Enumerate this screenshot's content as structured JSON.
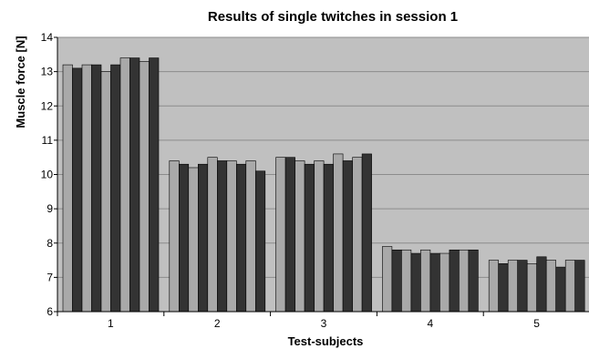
{
  "chart_data": {
    "type": "bar",
    "title": "Results of single twitches in session 1",
    "xlabel": "Test-subjects",
    "ylabel": "Muscle force [N]",
    "ylim": [
      6,
      14
    ],
    "yticks": [
      "6",
      "7",
      "8",
      "9",
      "10",
      "11",
      "12",
      "13",
      "14"
    ],
    "grid": true,
    "legend": "none",
    "categories": [
      "1",
      "2",
      "3",
      "4",
      "5"
    ],
    "series": [
      {
        "values": [
          13.2,
          10.4,
          10.5,
          7.9,
          7.5
        ]
      },
      {
        "values": [
          13.1,
          10.3,
          10.5,
          7.8,
          7.4
        ]
      },
      {
        "values": [
          13.2,
          10.2,
          10.4,
          7.8,
          7.5
        ]
      },
      {
        "values": [
          13.2,
          10.3,
          10.3,
          7.7,
          7.5
        ]
      },
      {
        "values": [
          13.0,
          10.5,
          10.4,
          7.8,
          7.4
        ]
      },
      {
        "values": [
          13.2,
          10.4,
          10.3,
          7.7,
          7.6
        ]
      },
      {
        "values": [
          13.4,
          10.4,
          10.6,
          7.7,
          7.5
        ]
      },
      {
        "values": [
          13.4,
          10.3,
          10.4,
          7.8,
          7.3
        ]
      },
      {
        "values": [
          13.3,
          10.4,
          10.5,
          7.8,
          7.5
        ]
      },
      {
        "values": [
          13.4,
          10.1,
          10.6,
          7.8,
          7.5
        ]
      }
    ],
    "colors": {
      "plot_background": "#c0c0c0",
      "light_bar": "#a9a9a9",
      "dark_bar": "#333333",
      "gridline": "#8c8c8c",
      "axis": "#000000"
    }
  }
}
